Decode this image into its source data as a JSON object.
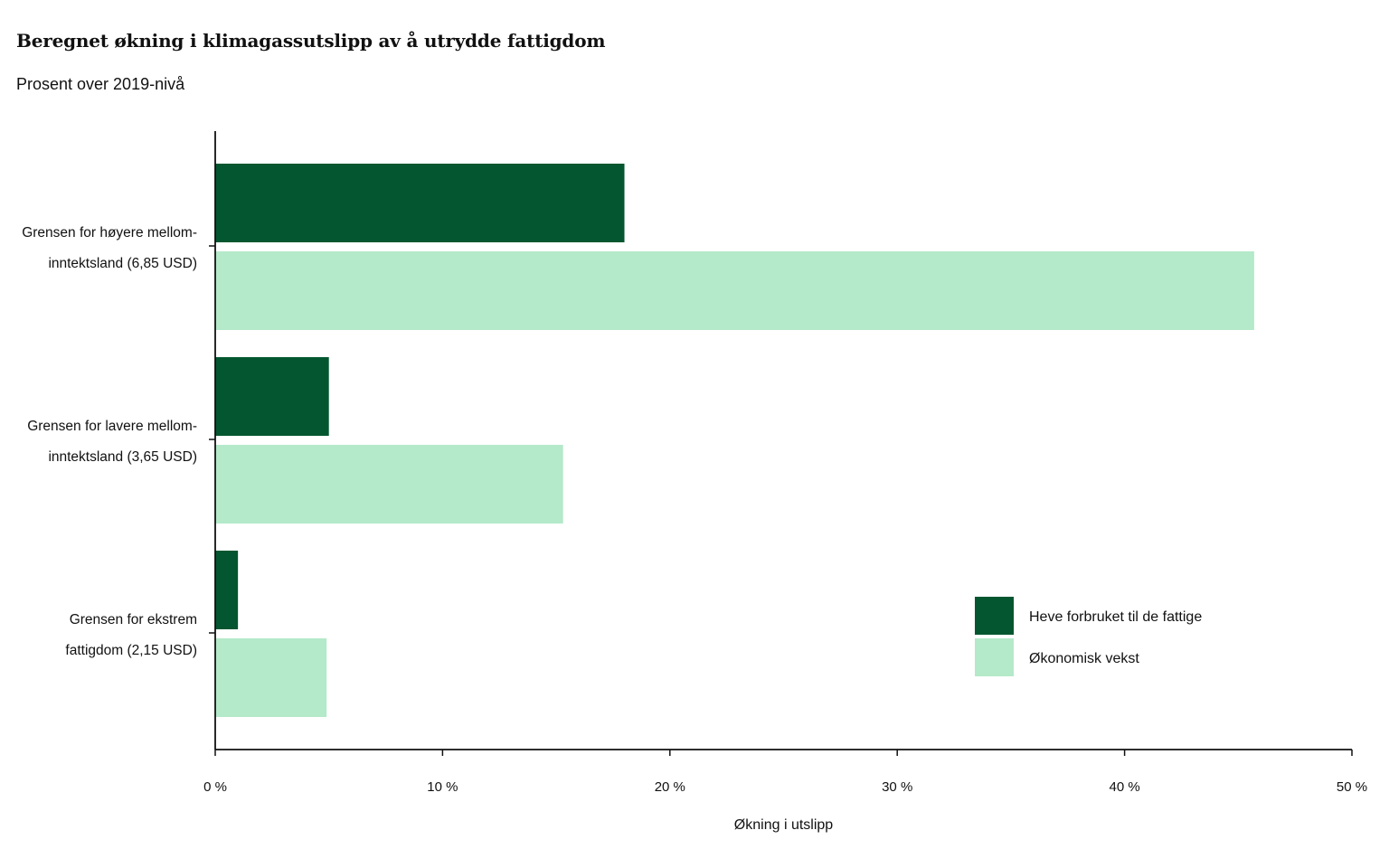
{
  "title": "Beregnet økning i klimagassutslipp av å utrydde fattigdom",
  "subtitle": "Prosent over 2019-nivå",
  "chart_data": {
    "type": "bar",
    "orientation": "horizontal",
    "categories": [
      [
        "Grensen for høyere mellom-",
        "inntektsland (6,85 USD)"
      ],
      [
        "Grensen for lavere mellom-",
        "inntektsland (3,65 USD)"
      ],
      [
        "Grensen for ekstrem",
        "fattigdom (2,15 USD)"
      ]
    ],
    "series": [
      {
        "name": "Heve forbruket til de fattige",
        "color": "#03562f",
        "values": [
          18.0,
          5.0,
          1.0
        ]
      },
      {
        "name": "Økonomisk vekst",
        "color": "#b4e9c9",
        "values": [
          45.7,
          15.3,
          4.9
        ]
      }
    ],
    "xlabel": "Økning i utslipp",
    "ylabel": "",
    "xlim": [
      0,
      50
    ],
    "xticks": [
      0,
      10,
      20,
      30,
      40,
      50
    ],
    "xtick_labels": [
      "0 %",
      "10 %",
      "20 %",
      "30 %",
      "40 %",
      "50 %"
    ],
    "grid": false,
    "legend_position": "bottom-right"
  }
}
